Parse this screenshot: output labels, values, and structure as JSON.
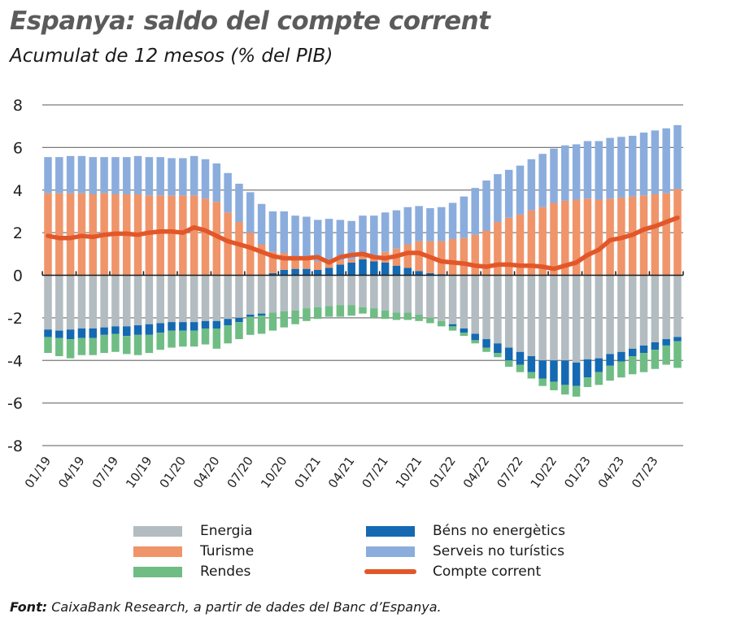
{
  "chart_data": {
    "type": "bar",
    "stacked": true,
    "title": "Espanya: saldo del compte corrent",
    "subtitle": "Acumulat de 12 mesos (% del PIB)",
    "xlabel": "",
    "ylabel": "",
    "ylim": [
      -8,
      8
    ],
    "yticks": [
      8,
      6,
      4,
      2,
      0,
      -2,
      -4,
      -6,
      -8
    ],
    "grid": true,
    "xtick_labels": [
      "01/19",
      "04/19",
      "07/19",
      "10/19",
      "01/20",
      "04/20",
      "07/20",
      "10/20",
      "01/21",
      "04/21",
      "07/21",
      "10/21",
      "01/22",
      "04/22",
      "07/22",
      "10/22",
      "01/23",
      "04/23",
      "07/23"
    ],
    "categories": [
      "01/19",
      "02/19",
      "03/19",
      "04/19",
      "05/19",
      "06/19",
      "07/19",
      "08/19",
      "09/19",
      "10/19",
      "11/19",
      "12/19",
      "01/20",
      "02/20",
      "03/20",
      "04/20",
      "05/20",
      "06/20",
      "07/20",
      "08/20",
      "09/20",
      "10/20",
      "11/20",
      "12/20",
      "01/21",
      "02/21",
      "03/21",
      "04/21",
      "05/21",
      "06/21",
      "07/21",
      "08/21",
      "09/21",
      "10/21",
      "11/21",
      "12/21",
      "01/22",
      "02/22",
      "03/22",
      "04/22",
      "05/22",
      "06/22",
      "07/22",
      "08/22",
      "09/22",
      "10/22",
      "11/22",
      "12/22",
      "01/23",
      "02/23",
      "03/23",
      "04/23",
      "05/23",
      "06/23",
      "07/23",
      "08/23",
      "09/23"
    ],
    "series": [
      {
        "name": "Energia",
        "color": "#b2bcc1",
        "kind": "bar",
        "values": [
          -2.55,
          -2.6,
          -2.55,
          -2.5,
          -2.5,
          -2.45,
          -2.4,
          -2.4,
          -2.35,
          -2.3,
          -2.25,
          -2.2,
          -2.2,
          -2.2,
          -2.15,
          -2.15,
          -2.05,
          -2.0,
          -1.85,
          -1.8,
          -1.75,
          -1.7,
          -1.65,
          -1.55,
          -1.5,
          -1.45,
          -1.4,
          -1.4,
          -1.5,
          -1.55,
          -1.65,
          -1.75,
          -1.75,
          -1.85,
          -2.0,
          -2.15,
          -2.3,
          -2.5,
          -2.75,
          -3.0,
          -3.2,
          -3.4,
          -3.6,
          -3.8,
          -4.0,
          -4.0,
          -4.0,
          -4.1,
          -3.95,
          -3.9,
          -3.7,
          -3.6,
          -3.45,
          -3.3,
          -3.15,
          -3.0,
          -2.9
        ]
      },
      {
        "name": "Béns no energètics",
        "color": "#1469b2",
        "kind": "bar",
        "values": [
          -0.35,
          -0.35,
          -0.45,
          -0.45,
          -0.45,
          -0.35,
          -0.35,
          -0.45,
          -0.45,
          -0.5,
          -0.45,
          -0.4,
          -0.4,
          -0.4,
          -0.35,
          -0.35,
          -0.3,
          -0.2,
          -0.1,
          -0.1,
          0.1,
          0.25,
          0.3,
          0.3,
          0.25,
          0.35,
          0.5,
          0.6,
          0.75,
          0.65,
          0.6,
          0.45,
          0.35,
          0.2,
          0.1,
          0.05,
          -0.1,
          -0.2,
          -0.3,
          -0.4,
          -0.45,
          -0.6,
          -0.6,
          -0.75,
          -0.85,
          -1.0,
          -1.15,
          -1.1,
          -0.85,
          -0.65,
          -0.55,
          -0.45,
          -0.35,
          -0.35,
          -0.35,
          -0.3,
          -0.2
        ]
      },
      {
        "name": "Turisme",
        "color": "#f0946a",
        "kind": "bar",
        "values": [
          3.85,
          3.85,
          3.85,
          3.85,
          3.8,
          3.85,
          3.8,
          3.8,
          3.8,
          3.75,
          3.75,
          3.75,
          3.75,
          3.75,
          3.6,
          3.45,
          2.95,
          2.5,
          2.0,
          1.45,
          1.0,
          0.8,
          0.55,
          0.5,
          0.4,
          0.35,
          0.2,
          0.15,
          0.2,
          0.3,
          0.5,
          0.8,
          1.1,
          1.4,
          1.5,
          1.55,
          1.7,
          1.75,
          1.9,
          2.1,
          2.5,
          2.7,
          2.85,
          3.05,
          3.2,
          3.4,
          3.5,
          3.55,
          3.6,
          3.55,
          3.6,
          3.65,
          3.7,
          3.75,
          3.8,
          3.85,
          4.05
        ]
      },
      {
        "name": "Serveis no turístics",
        "color": "#8baddd",
        "kind": "bar",
        "values": [
          1.7,
          1.7,
          1.75,
          1.75,
          1.75,
          1.7,
          1.75,
          1.75,
          1.8,
          1.8,
          1.8,
          1.75,
          1.75,
          1.85,
          1.85,
          1.8,
          1.85,
          1.8,
          1.9,
          1.9,
          1.9,
          1.95,
          1.95,
          1.95,
          1.95,
          1.95,
          1.9,
          1.8,
          1.85,
          1.85,
          1.85,
          1.8,
          1.75,
          1.65,
          1.55,
          1.6,
          1.7,
          1.95,
          2.2,
          2.35,
          2.25,
          2.25,
          2.3,
          2.4,
          2.5,
          2.55,
          2.6,
          2.6,
          2.7,
          2.75,
          2.85,
          2.85,
          2.85,
          2.95,
          3.0,
          3.05,
          3.0
        ]
      },
      {
        "name": "Rendes",
        "color": "#6fbd84",
        "kind": "bar",
        "values": [
          -0.75,
          -0.85,
          -0.9,
          -0.8,
          -0.8,
          -0.85,
          -0.85,
          -0.85,
          -0.95,
          -0.85,
          -0.8,
          -0.8,
          -0.75,
          -0.75,
          -0.75,
          -0.95,
          -0.85,
          -0.8,
          -0.85,
          -0.85,
          -0.85,
          -0.75,
          -0.65,
          -0.6,
          -0.55,
          -0.5,
          -0.55,
          -0.5,
          -0.3,
          -0.45,
          -0.4,
          -0.35,
          -0.35,
          -0.3,
          -0.25,
          -0.25,
          -0.2,
          -0.15,
          -0.15,
          -0.2,
          -0.2,
          -0.3,
          -0.35,
          -0.3,
          -0.35,
          -0.4,
          -0.45,
          -0.5,
          -0.45,
          -0.6,
          -0.7,
          -0.75,
          -0.85,
          -0.9,
          -0.9,
          -0.9,
          -1.25
        ]
      },
      {
        "name": "Compte corrent",
        "color": "#e2572a",
        "kind": "line",
        "values": [
          1.85,
          1.75,
          1.75,
          1.85,
          1.8,
          1.9,
          1.95,
          1.95,
          1.9,
          2.0,
          2.05,
          2.05,
          2.0,
          2.25,
          2.1,
          1.85,
          1.6,
          1.45,
          1.3,
          1.1,
          0.9,
          0.8,
          0.8,
          0.8,
          0.85,
          0.6,
          0.85,
          0.95,
          1.0,
          0.85,
          0.8,
          0.9,
          1.05,
          1.05,
          0.85,
          0.65,
          0.6,
          0.55,
          0.45,
          0.4,
          0.5,
          0.5,
          0.45,
          0.45,
          0.4,
          0.3,
          0.45,
          0.6,
          0.95,
          1.2,
          1.65,
          1.75,
          1.9,
          2.15,
          2.3,
          2.5,
          2.7
        ]
      }
    ],
    "legend_position": "bottom"
  },
  "legend": [
    {
      "label": "Energia",
      "color": "#b2bcc1",
      "type": "bar"
    },
    {
      "label": "Turisme",
      "color": "#f0946a",
      "type": "bar"
    },
    {
      "label": "Rendes",
      "color": "#6fbd84",
      "type": "bar"
    },
    {
      "label": "Béns no energètics",
      "color": "#1469b2",
      "type": "bar"
    },
    {
      "label": "Serveis no turístics",
      "color": "#8baddd",
      "type": "bar"
    },
    {
      "label": "Compte corrent",
      "color": "#e2572a",
      "type": "line"
    }
  ],
  "footer": {
    "label": "Font:",
    "text": " CaixaBank Research, a partir de dades del Banc d’Espanya."
  }
}
